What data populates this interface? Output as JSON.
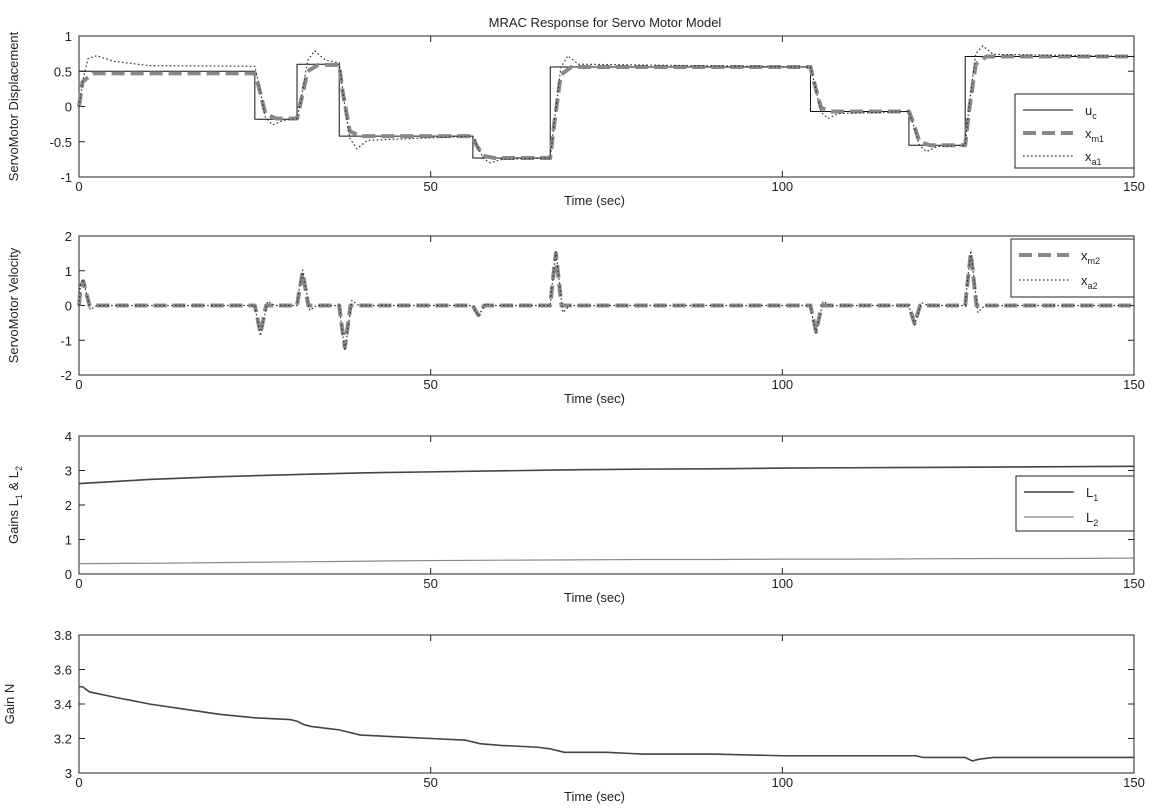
{
  "figure": {
    "title": "MRAC Response for Servo Motor Model"
  },
  "colors": {
    "axes": "#222222",
    "uc": "#111111",
    "xm": "#888888",
    "xa": "#333333",
    "L1": "#444444",
    "L2": "#888888",
    "N": "#444444"
  },
  "chart_data": [
    {
      "type": "line",
      "title": "MRAC Response for Servo Motor Model",
      "xlabel": "Time (sec)",
      "ylabel": "ServoMotor Displacement",
      "xlim": [
        0,
        150
      ],
      "ylim": [
        -1,
        1
      ],
      "xticks": [
        0,
        50,
        100,
        150
      ],
      "yticks": [
        -1,
        -0.5,
        0,
        0.5,
        1
      ],
      "legend_position": "right",
      "series": [
        {
          "name": "u_c",
          "label_main": "u",
          "label_sub": "c",
          "style": "solid",
          "color": "#111111",
          "width": 1,
          "x": [
            0,
            25,
            25,
            31,
            31,
            37,
            37,
            56,
            56,
            67,
            67,
            104,
            104,
            118,
            118,
            126,
            126,
            150
          ],
          "y": [
            0.5,
            0.5,
            -0.18,
            -0.18,
            0.6,
            0.6,
            -0.42,
            -0.42,
            -0.73,
            -0.73,
            0.56,
            0.56,
            -0.07,
            -0.07,
            -0.55,
            -0.55,
            0.71,
            0.71
          ]
        },
        {
          "name": "x_m1",
          "label_main": "x",
          "label_sub": "m1",
          "style": "dashed",
          "color": "#888888",
          "width": 4,
          "x": [
            0,
            0.5,
            2,
            25,
            25.5,
            26.5,
            28,
            31,
            31.5,
            32.5,
            34,
            37,
            37.5,
            38.5,
            40,
            56,
            56.5,
            57.5,
            59,
            67,
            67.5,
            68.5,
            70,
            104,
            104.5,
            105.5,
            107,
            118,
            118.5,
            119.5,
            121,
            126,
            126.5,
            127.5,
            129,
            150
          ],
          "y": [
            0,
            0.35,
            0.47,
            0.47,
            0.3,
            -0.1,
            -0.17,
            -0.17,
            0.05,
            0.5,
            0.59,
            0.59,
            0.2,
            -0.35,
            -0.42,
            -0.42,
            -0.55,
            -0.7,
            -0.73,
            -0.73,
            -0.3,
            0.45,
            0.56,
            0.56,
            0.35,
            -0.02,
            -0.07,
            -0.07,
            -0.2,
            -0.5,
            -0.55,
            -0.55,
            -0.1,
            0.6,
            0.71,
            0.71
          ]
        },
        {
          "name": "x_a1",
          "label_main": "x",
          "label_sub": "a1",
          "style": "dotted",
          "color": "#333333",
          "width": 1.2,
          "x": [
            0,
            0.6,
            1.3,
            2.5,
            5,
            10,
            25,
            25.6,
            26.5,
            27.5,
            29,
            31,
            31.6,
            32.5,
            33.5,
            35,
            37,
            37.6,
            38.5,
            39.5,
            41,
            56,
            56.6,
            57.5,
            58.5,
            60,
            67,
            67.6,
            68.5,
            69.5,
            71,
            104,
            104.6,
            105.5,
            106.5,
            108,
            118,
            118.6,
            119.5,
            120.5,
            122,
            126,
            126.6,
            127.5,
            128.5,
            130,
            150
          ],
          "y": [
            0,
            0.4,
            0.68,
            0.72,
            0.64,
            0.58,
            0.57,
            0.3,
            -0.15,
            -0.26,
            -0.2,
            -0.17,
            0.1,
            0.65,
            0.79,
            0.66,
            0.62,
            0.15,
            -0.45,
            -0.6,
            -0.48,
            -0.42,
            -0.55,
            -0.74,
            -0.8,
            -0.75,
            -0.73,
            -0.2,
            0.55,
            0.72,
            0.6,
            0.56,
            0.32,
            -0.08,
            -0.17,
            -0.1,
            -0.07,
            -0.25,
            -0.55,
            -0.64,
            -0.57,
            -0.55,
            0.05,
            0.75,
            0.86,
            0.74,
            0.71
          ]
        }
      ]
    },
    {
      "type": "line",
      "xlabel": "Time (sec)",
      "ylabel": "ServoMotor Velocity",
      "xlim": [
        0,
        150
      ],
      "ylim": [
        -2,
        2
      ],
      "xticks": [
        0,
        50,
        100,
        150
      ],
      "yticks": [
        -2,
        -1,
        0,
        1,
        2
      ],
      "legend_position": "top-right",
      "series": [
        {
          "name": "x_m2",
          "label_main": "x",
          "label_sub": "m2",
          "style": "dashed",
          "color": "#888888",
          "width": 4,
          "x": [
            0,
            0.2,
            0.6,
            1.5,
            25,
            25.3,
            25.8,
            26.6,
            31,
            31.3,
            31.8,
            32.6,
            37,
            37.3,
            37.8,
            38.6,
            56,
            56.3,
            56.8,
            57.6,
            67,
            67.3,
            67.8,
            68.6,
            104,
            104.3,
            104.8,
            105.6,
            118,
            118.3,
            118.8,
            119.6,
            126,
            126.3,
            126.8,
            127.6,
            150
          ],
          "y": [
            0,
            0.5,
            0.7,
            0,
            0,
            -0.3,
            -0.8,
            0,
            0,
            0.4,
            0.95,
            0,
            0,
            -0.5,
            -1.2,
            0,
            0,
            -0.12,
            -0.28,
            0,
            0,
            0.6,
            1.5,
            0,
            0,
            -0.3,
            -0.75,
            0,
            0,
            -0.2,
            -0.52,
            0,
            0,
            0.6,
            1.5,
            0,
            0
          ]
        },
        {
          "name": "x_a2",
          "label_main": "x",
          "label_sub": "a2",
          "style": "dotted",
          "color": "#333333",
          "width": 1.2,
          "x": [
            0,
            0.2,
            0.6,
            1.6,
            2.5,
            25,
            25.3,
            25.8,
            26.8,
            27.8,
            31,
            31.3,
            31.8,
            32.8,
            33.8,
            37,
            37.3,
            37.8,
            38.8,
            39.8,
            56,
            56.3,
            56.8,
            57.8,
            58.8,
            67,
            67.3,
            67.8,
            68.8,
            69.8,
            104,
            104.3,
            104.8,
            105.8,
            106.8,
            118,
            118.3,
            118.8,
            119.8,
            120.8,
            126,
            126.3,
            126.8,
            127.8,
            128.8,
            150
          ],
          "y": [
            0,
            0.6,
            0.75,
            -0.12,
            0,
            0,
            -0.35,
            -0.88,
            0.12,
            0,
            0,
            0.45,
            1.02,
            -0.14,
            0,
            0,
            -0.55,
            -1.3,
            0.15,
            0,
            0,
            -0.14,
            -0.3,
            0.06,
            0,
            0,
            0.65,
            1.55,
            -0.2,
            0,
            0,
            -0.35,
            -0.8,
            0.12,
            0,
            0,
            -0.22,
            -0.55,
            0.08,
            0,
            0,
            0.65,
            1.58,
            -0.2,
            0,
            0
          ]
        }
      ]
    },
    {
      "type": "line",
      "xlabel": "Time (sec)",
      "ylabel": "Gains L1 & L2",
      "ylabel_parts": [
        "Gains L",
        "1",
        " & L",
        "2"
      ],
      "xlim": [
        0,
        150
      ],
      "ylim": [
        0,
        4
      ],
      "xticks": [
        0,
        50,
        100,
        150
      ],
      "yticks": [
        0,
        1,
        2,
        3,
        4
      ],
      "legend_position": "right",
      "series": [
        {
          "name": "L_1",
          "label_main": "L",
          "label_sub": "1",
          "style": "solid",
          "color": "#444444",
          "width": 1.6,
          "x": [
            0,
            5,
            10,
            20,
            30,
            40,
            50,
            60,
            70,
            80,
            90,
            100,
            110,
            120,
            130,
            140,
            150
          ],
          "y": [
            2.62,
            2.68,
            2.74,
            2.82,
            2.88,
            2.93,
            2.96,
            2.99,
            3.02,
            3.04,
            3.05,
            3.07,
            3.08,
            3.09,
            3.1,
            3.11,
            3.12
          ]
        },
        {
          "name": "L_2",
          "label_main": "L",
          "label_sub": "2",
          "style": "solid",
          "color": "#888888",
          "width": 1.2,
          "x": [
            0,
            10,
            20,
            30,
            40,
            50,
            60,
            70,
            80,
            90,
            100,
            110,
            120,
            130,
            140,
            150
          ],
          "y": [
            0.3,
            0.31,
            0.33,
            0.35,
            0.37,
            0.39,
            0.4,
            0.41,
            0.42,
            0.42,
            0.43,
            0.43,
            0.44,
            0.45,
            0.45,
            0.46
          ]
        }
      ]
    },
    {
      "type": "line",
      "xlabel": "Time (sec)",
      "ylabel": "Gain N",
      "xlim": [
        0,
        150
      ],
      "ylim": [
        3,
        3.8
      ],
      "xticks": [
        0,
        50,
        100,
        150
      ],
      "yticks": [
        3,
        3.2,
        3.4,
        3.6,
        3.8
      ],
      "series": [
        {
          "name": "N",
          "style": "solid",
          "color": "#444444",
          "width": 1.6,
          "x": [
            0,
            0.5,
            1.5,
            5,
            10,
            15,
            20,
            25,
            30,
            31,
            32,
            33,
            35,
            37,
            38,
            39,
            40,
            45,
            50,
            55,
            56,
            57,
            60,
            65,
            67,
            68,
            69,
            75,
            80,
            90,
            100,
            104,
            105,
            110,
            118,
            119,
            120,
            126,
            127,
            128,
            130,
            140,
            150
          ],
          "y": [
            3.5,
            3.5,
            3.47,
            3.44,
            3.4,
            3.37,
            3.34,
            3.32,
            3.31,
            3.3,
            3.28,
            3.27,
            3.26,
            3.25,
            3.24,
            3.23,
            3.22,
            3.21,
            3.2,
            3.19,
            3.18,
            3.17,
            3.16,
            3.15,
            3.14,
            3.13,
            3.12,
            3.12,
            3.11,
            3.11,
            3.1,
            3.1,
            3.1,
            3.1,
            3.1,
            3.1,
            3.09,
            3.09,
            3.07,
            3.08,
            3.09,
            3.09,
            3.09
          ]
        }
      ]
    }
  ]
}
